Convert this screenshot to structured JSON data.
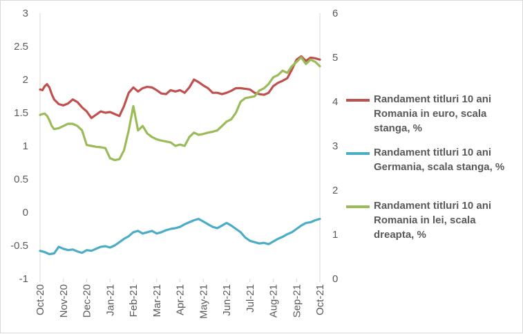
{
  "chart_data": {
    "type": "line",
    "title": "",
    "x_ticks": [
      "Oct-20",
      "Nov-20",
      "Dec-20",
      "Jan-21",
      "Feb-21",
      "Mar-21",
      "Apr-21",
      "May-21",
      "Jun-21",
      "Jul-21",
      "Aug-21",
      "Sep-21",
      "Oct-21"
    ],
    "y_left": {
      "min": -1,
      "max": 3,
      "ticks": [
        "3",
        "2.5",
        "2",
        "1.5",
        "1",
        "0.5",
        "0",
        "-0.5",
        "-1"
      ]
    },
    "y_right": {
      "min": 0,
      "max": 6,
      "ticks": [
        "6",
        "5",
        "4",
        "3",
        "2",
        "1",
        "0"
      ]
    },
    "legend_position": "right",
    "series": [
      {
        "name": "Randament titluri 10 ani Romania in euro, scala stanga, %",
        "axis": "left",
        "color": "#c0504d",
        "x": [
          0,
          0.1,
          0.2,
          0.3,
          0.4,
          0.5,
          0.6,
          0.8,
          1.0,
          1.2,
          1.4,
          1.6,
          1.8,
          2.0,
          2.2,
          2.4,
          2.6,
          2.8,
          3.0,
          3.2,
          3.4,
          3.6,
          3.8,
          4.0,
          4.2,
          4.4,
          4.6,
          4.8,
          5.0,
          5.2,
          5.4,
          5.6,
          5.8,
          6.0,
          6.2,
          6.4,
          6.6,
          6.8,
          7.0,
          7.2,
          7.4,
          7.6,
          7.8,
          8.0,
          8.2,
          8.4,
          8.6,
          8.8,
          9.0,
          9.2,
          9.4,
          9.6,
          9.8,
          10.0,
          10.2,
          10.4,
          10.6,
          10.8,
          11.0,
          11.2,
          11.4,
          11.6,
          11.8,
          12.0
        ],
        "values": [
          1.85,
          1.84,
          1.9,
          1.93,
          1.88,
          1.78,
          1.7,
          1.63,
          1.61,
          1.64,
          1.7,
          1.66,
          1.58,
          1.52,
          1.42,
          1.47,
          1.52,
          1.5,
          1.51,
          1.48,
          1.45,
          1.6,
          1.8,
          1.88,
          1.82,
          1.87,
          1.89,
          1.88,
          1.84,
          1.79,
          1.78,
          1.84,
          1.82,
          1.84,
          1.8,
          1.88,
          2.0,
          1.96,
          1.91,
          1.87,
          1.8,
          1.8,
          1.78,
          1.8,
          1.83,
          1.87,
          1.87,
          1.86,
          1.85,
          1.8,
          1.78,
          1.77,
          1.8,
          1.9,
          1.95,
          1.98,
          2.02,
          2.15,
          2.3,
          2.35,
          2.28,
          2.33,
          2.32,
          2.3
        ]
      },
      {
        "name": "Randament titluri 10 ani Germania, scala stanga, %",
        "axis": "left",
        "color": "#4bacc6",
        "x": [
          0,
          0.2,
          0.4,
          0.6,
          0.8,
          1.0,
          1.2,
          1.4,
          1.6,
          1.8,
          2.0,
          2.2,
          2.4,
          2.6,
          2.8,
          3.0,
          3.2,
          3.4,
          3.6,
          3.8,
          4.0,
          4.2,
          4.4,
          4.6,
          4.8,
          5.0,
          5.2,
          5.4,
          5.6,
          5.8,
          6.0,
          6.2,
          6.4,
          6.6,
          6.8,
          7.0,
          7.2,
          7.4,
          7.6,
          7.8,
          8.0,
          8.2,
          8.4,
          8.6,
          8.8,
          9.0,
          9.2,
          9.4,
          9.6,
          9.8,
          10.0,
          10.2,
          10.4,
          10.6,
          10.8,
          11.0,
          11.2,
          11.4,
          11.6,
          11.8,
          12.0
        ],
        "values": [
          -0.58,
          -0.6,
          -0.63,
          -0.62,
          -0.52,
          -0.55,
          -0.57,
          -0.56,
          -0.59,
          -0.61,
          -0.57,
          -0.58,
          -0.55,
          -0.52,
          -0.51,
          -0.53,
          -0.5,
          -0.45,
          -0.4,
          -0.36,
          -0.3,
          -0.28,
          -0.32,
          -0.3,
          -0.28,
          -0.32,
          -0.3,
          -0.27,
          -0.25,
          -0.24,
          -0.22,
          -0.18,
          -0.15,
          -0.12,
          -0.1,
          -0.14,
          -0.18,
          -0.22,
          -0.24,
          -0.2,
          -0.16,
          -0.2,
          -0.25,
          -0.3,
          -0.38,
          -0.43,
          -0.45,
          -0.47,
          -0.46,
          -0.48,
          -0.44,
          -0.4,
          -0.37,
          -0.33,
          -0.3,
          -0.25,
          -0.2,
          -0.16,
          -0.15,
          -0.12,
          -0.1
        ]
      },
      {
        "name": "Randament titluri 10 ani Romania in lei, scala dreapta, %",
        "axis": "right",
        "color": "#9bbb59",
        "x": [
          0,
          0.1,
          0.2,
          0.3,
          0.4,
          0.5,
          0.6,
          0.8,
          1.0,
          1.2,
          1.4,
          1.6,
          1.8,
          2.0,
          2.2,
          2.4,
          2.6,
          2.8,
          3.0,
          3.2,
          3.4,
          3.6,
          3.8,
          4.0,
          4.2,
          4.4,
          4.6,
          4.8,
          5.0,
          5.2,
          5.4,
          5.6,
          5.8,
          6.0,
          6.2,
          6.4,
          6.6,
          6.8,
          7.0,
          7.2,
          7.4,
          7.6,
          7.8,
          8.0,
          8.2,
          8.4,
          8.6,
          8.8,
          9.0,
          9.2,
          9.4,
          9.6,
          9.8,
          10.0,
          10.2,
          10.4,
          10.6,
          10.8,
          11.0,
          11.2,
          11.4,
          11.6,
          11.8,
          12.0
        ],
        "values": [
          3.7,
          3.72,
          3.73,
          3.68,
          3.58,
          3.45,
          3.38,
          3.4,
          3.45,
          3.5,
          3.5,
          3.45,
          3.35,
          3.02,
          3.0,
          2.98,
          2.97,
          2.95,
          2.72,
          2.68,
          2.7,
          2.9,
          3.35,
          3.9,
          3.35,
          3.45,
          3.28,
          3.2,
          3.15,
          3.12,
          3.1,
          3.08,
          3.0,
          3.03,
          3.0,
          3.2,
          3.3,
          3.25,
          3.27,
          3.3,
          3.32,
          3.35,
          3.45,
          3.55,
          3.6,
          3.75,
          4.0,
          4.08,
          4.1,
          4.12,
          4.25,
          4.3,
          4.4,
          4.55,
          4.6,
          4.7,
          4.65,
          4.8,
          4.9,
          5.0,
          4.85,
          4.95,
          4.9,
          4.8
        ]
      }
    ]
  }
}
